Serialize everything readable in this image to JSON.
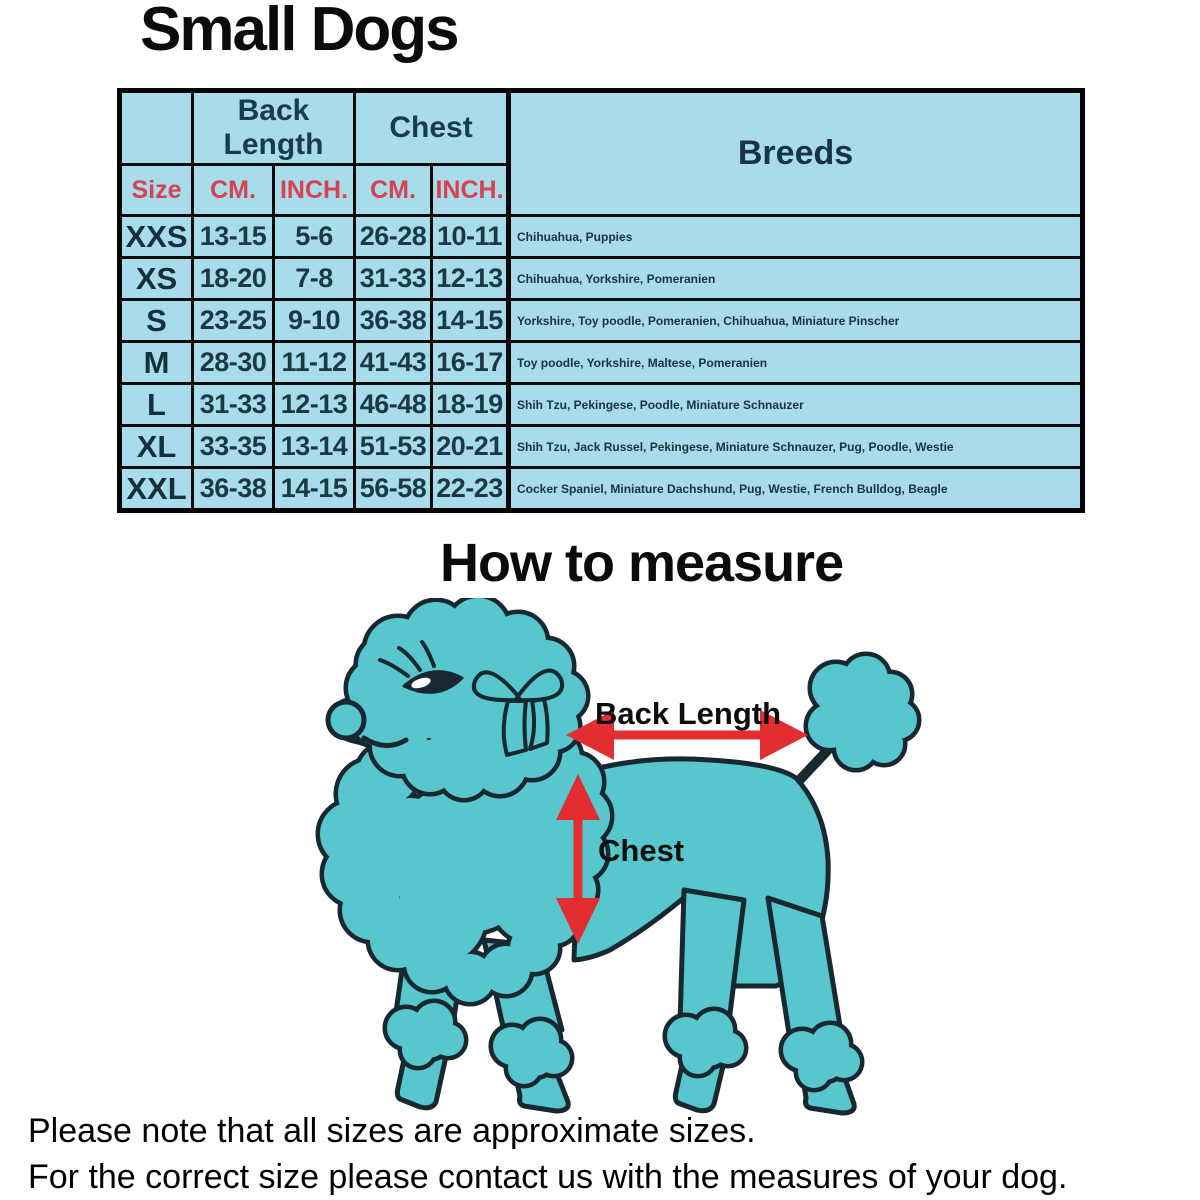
{
  "title": "Small Dogs",
  "table": {
    "group_headers": {
      "back_length": "Back Length",
      "chest": "Chest",
      "breeds": "Breeds"
    },
    "col_headers": {
      "size": "Size",
      "back_cm": "CM.",
      "back_inch": "INCH.",
      "chest_cm": "CM.",
      "chest_inch": "INCH."
    },
    "rows": [
      {
        "size": "XXS",
        "back_cm": "13-15",
        "back_inch": "5-6",
        "chest_cm": "26-28",
        "chest_inch": "10-11",
        "breeds": "Chihuahua, Puppies"
      },
      {
        "size": "XS",
        "back_cm": "18-20",
        "back_inch": "7-8",
        "chest_cm": "31-33",
        "chest_inch": "12-13",
        "breeds": "Chihuahua, Yorkshire, Pomeranien"
      },
      {
        "size": "S",
        "back_cm": "23-25",
        "back_inch": "9-10",
        "chest_cm": "36-38",
        "chest_inch": "14-15",
        "breeds": "Yorkshire, Toy poodle, Pomeranien, Chihuahua, Miniature Pinscher"
      },
      {
        "size": "M",
        "back_cm": "28-30",
        "back_inch": "11-12",
        "chest_cm": "41-43",
        "chest_inch": "16-17",
        "breeds": "Toy poodle, Yorkshire, Maltese, Pomeranien"
      },
      {
        "size": "L",
        "back_cm": "31-33",
        "back_inch": "12-13",
        "chest_cm": "46-48",
        "chest_inch": "18-19",
        "breeds": "Shih Tzu, Pekingese, Poodle, Miniature Schnauzer"
      },
      {
        "size": "XL",
        "back_cm": "33-35",
        "back_inch": "13-14",
        "chest_cm": "51-53",
        "chest_inch": "20-21",
        "breeds": "Shih Tzu, Jack Russel, Pekingese, Miniature Schnauzer, Pug, Poodle, Westie"
      },
      {
        "size": "XXL",
        "back_cm": "36-38",
        "back_inch": "14-15",
        "chest_cm": "56-58",
        "chest_inch": "22-23",
        "breeds": "Cocker Spaniel, Miniature Dachshund, Pug, Westie, French Bulldog, Beagle"
      }
    ]
  },
  "measure": {
    "heading": "How to measure",
    "back_length_label": "Back Length",
    "chest_label": "Chest"
  },
  "notes": {
    "line1": "Please note that all sizes are approximate sizes.",
    "line2": "For the correct size please contact us with the measures of your dog."
  },
  "colors": {
    "table_bg": "#a9dcea",
    "header_red": "#d8414f",
    "header_navy": "#183b4e",
    "cell_text": "#1b3845",
    "dog_fill": "#57c6cd",
    "dog_outline": "#182830",
    "arrow_red": "#e22e30"
  }
}
